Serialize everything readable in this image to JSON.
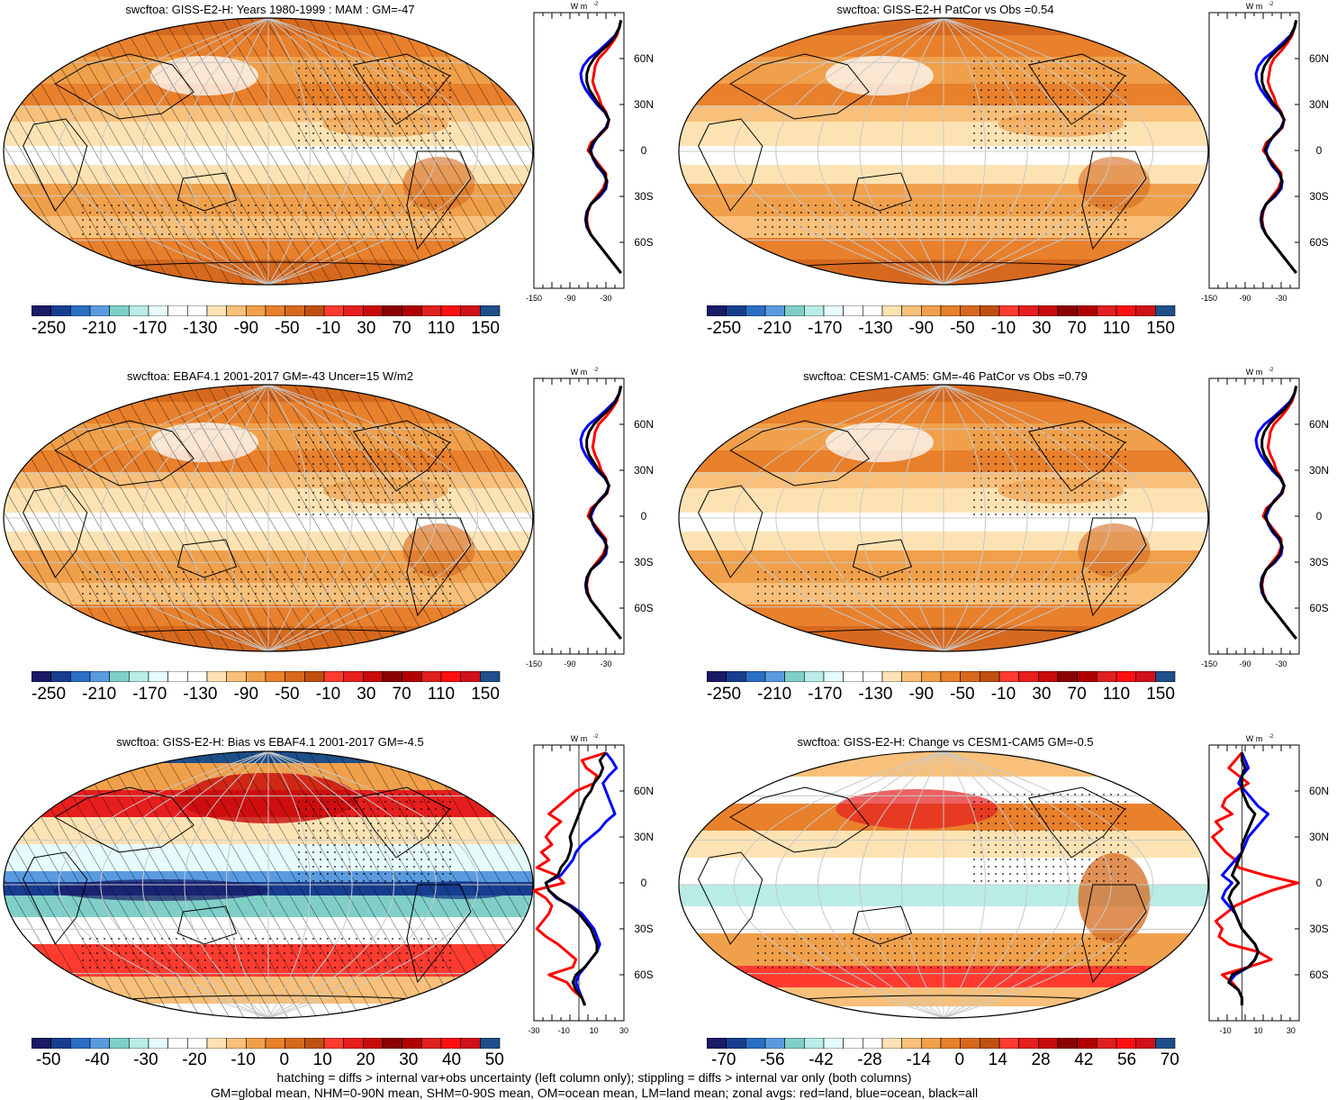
{
  "panels": [
    {
      "title": "swcftoa: GISS-E2-H: Years 1980-1999 : MAM : GM=-47",
      "cbar_labels": [
        "-250",
        "-210",
        "-170",
        "-130",
        "-90",
        "-50",
        "-10",
        "30",
        "70",
        "110",
        "150"
      ],
      "zonal_xticks": [
        "-150",
        "-90",
        "-30"
      ],
      "zonal_unit": "W m",
      "zonal_unit_sup": "-2"
    },
    {
      "title": "swcftoa: GISS-E2-H PatCor vs Obs =0.54",
      "cbar_labels": [
        "-250",
        "-210",
        "-170",
        "-130",
        "-90",
        "-50",
        "-10",
        "30",
        "70",
        "110",
        "150"
      ],
      "zonal_xticks": [
        "-150",
        "-90",
        "-30"
      ],
      "zonal_unit": "W m",
      "zonal_unit_sup": "-2"
    },
    {
      "title": "swcftoa: EBAF4.1 2001-2017 GM=-43 Uncer=15 W/m2",
      "cbar_labels": [
        "-250",
        "-210",
        "-170",
        "-130",
        "-90",
        "-50",
        "-10",
        "30",
        "70",
        "110",
        "150"
      ],
      "zonal_xticks": [
        "-150",
        "-90",
        "-30"
      ],
      "zonal_unit": "W m",
      "zonal_unit_sup": "-2"
    },
    {
      "title": "swcftoa: CESM1-CAM5: GM=-46 PatCor vs Obs =0.79",
      "cbar_labels": [
        "-250",
        "-210",
        "-170",
        "-130",
        "-90",
        "-50",
        "-10",
        "30",
        "70",
        "110",
        "150"
      ],
      "zonal_xticks": [
        "-150",
        "-90",
        "-30"
      ],
      "zonal_unit": "W m",
      "zonal_unit_sup": "-2"
    },
    {
      "title": "swcftoa: GISS-E2-H: Bias vs EBAF4.1 2001-2017 GM=-4.5",
      "cbar_labels": [
        "-50",
        "-40",
        "-30",
        "-20",
        "-10",
        "0",
        "10",
        "20",
        "30",
        "40",
        "50"
      ],
      "zonal_xticks": [
        "-30",
        "-10",
        "10",
        "30"
      ],
      "zonal_unit": "W m",
      "zonal_unit_sup": "-2"
    },
    {
      "title": "swcftoa: GISS-E2-H: Change vs CESM1-CAM5 GM=-0.5",
      "cbar_labels": [
        "-70",
        "-56",
        "-42",
        "-28",
        "-14",
        "0",
        "14",
        "28",
        "42",
        "56",
        "70"
      ],
      "zonal_xticks": [
        "-10",
        "10",
        "30"
      ],
      "zonal_unit": "W m",
      "zonal_unit_sup": "-2"
    }
  ],
  "lat_labels": [
    "60N",
    "30N",
    "0",
    "30S",
    "60S"
  ],
  "caption": {
    "line1": "hatching = diffs > internal var+obs uncertainty (left column only); stippling = diffs > internal var only (both columns)",
    "line2": "GM=global mean, NHM=0-90N mean, SHM=0-90S mean, OM=ocean mean, LM=land mean; zonal avgs: red=land, blue=ocean, black=all"
  },
  "colors": {
    "full_scale": [
      "#1a1a66",
      "#173d8f",
      "#2a6fc4",
      "#5a9be0",
      "#7fcfc8",
      "#b9ece6",
      "#e6fbfb",
      "#ffffff",
      "#ffffff",
      "#fde3b4",
      "#f8c07a",
      "#f0a04b",
      "#e8802c",
      "#d6691e",
      "#c05010",
      "#ff3b30",
      "#e61e1e",
      "#c80a0a",
      "#8b0000",
      "#b00000",
      "#e02020",
      "#ff1010",
      "#d0101a",
      "#1e4f8a"
    ],
    "diff_scale": [
      "#1a1a66",
      "#173d8f",
      "#2a6fc4",
      "#5a9be0",
      "#7fcfc8",
      "#b9ece6",
      "#e6fbfb",
      "#ffffff",
      "#ffffff",
      "#fde3b4",
      "#f8c07a",
      "#f0a04b",
      "#e8802c",
      "#d6691e",
      "#c05010",
      "#ff3b30",
      "#e61e1e",
      "#c80a0a",
      "#8b0000",
      "#b00000",
      "#e02020",
      "#ff1010",
      "#d0101a",
      "#1e4f8a"
    ],
    "land_line": "#ff0000",
    "ocean_line": "#0000ff",
    "all_line": "#000000"
  },
  "zonal_lines": {
    "row_fullfield": {
      "lats": [
        85,
        80,
        75,
        70,
        65,
        60,
        55,
        50,
        45,
        40,
        35,
        30,
        25,
        20,
        15,
        10,
        5,
        0,
        -5,
        -10,
        -15,
        -20,
        -25,
        -30,
        -35,
        -40,
        -45,
        -50,
        -55,
        -60,
        -65,
        -70,
        -75,
        -80
      ],
      "land": [
        -5,
        -8,
        -12,
        -20,
        -30,
        -42,
        -48,
        -50,
        -52,
        -48,
        -42,
        -38,
        -30,
        -25,
        -28,
        -40,
        -55,
        -60,
        -50,
        -40,
        -30,
        -30,
        -35,
        -45,
        -55,
        -60,
        -62,
        -60,
        -55,
        -45,
        -35,
        -25,
        -15,
        -5
      ],
      "ocean": [
        -5,
        -8,
        -15,
        -28,
        -42,
        -58,
        -68,
        -72,
        -70,
        -64,
        -55,
        -45,
        -32,
        -25,
        -30,
        -42,
        -50,
        -55,
        -52,
        -45,
        -34,
        -28,
        -30,
        -40,
        -55,
        -62,
        -64,
        -62,
        -55,
        -45,
        -35,
        -25,
        -15,
        -5
      ],
      "all": [
        -5,
        -8,
        -14,
        -24,
        -38,
        -50,
        -58,
        -62,
        -62,
        -58,
        -50,
        -42,
        -31,
        -25,
        -29,
        -41,
        -52,
        -57,
        -51,
        -43,
        -32,
        -29,
        -32,
        -42,
        -55,
        -61,
        -63,
        -61,
        -55,
        -45,
        -35,
        -25,
        -15,
        -5
      ]
    },
    "row_bias": {
      "lats": [
        85,
        80,
        75,
        70,
        65,
        60,
        55,
        50,
        45,
        40,
        35,
        30,
        25,
        20,
        15,
        10,
        5,
        0,
        -5,
        -10,
        -15,
        -20,
        -25,
        -30,
        -35,
        -40,
        -45,
        -50,
        -55,
        -60,
        -65,
        -70,
        -75,
        -80
      ],
      "land": [
        18,
        2,
        5,
        12,
        10,
        -2,
        -8,
        -14,
        -20,
        -12,
        -18,
        -22,
        -18,
        -25,
        -20,
        -28,
        -15,
        -10,
        -30,
        -22,
        -18,
        -20,
        -24,
        -28,
        -22,
        -14,
        -8,
        -2,
        -4,
        -20,
        -8,
        -4,
        2,
        4
      ],
      "ocean": [
        18,
        22,
        25,
        20,
        16,
        18,
        20,
        22,
        24,
        18,
        14,
        8,
        2,
        -2,
        -4,
        -8,
        -12,
        -22,
        -20,
        -15,
        -5,
        2,
        6,
        10,
        12,
        14,
        12,
        8,
        4,
        0,
        -2,
        0,
        2,
        4
      ],
      "all": [
        18,
        14,
        16,
        14,
        10,
        8,
        4,
        2,
        0,
        -2,
        -4,
        -6,
        -5,
        -6,
        -8,
        -12,
        -14,
        -22,
        -20,
        -14,
        -6,
        0,
        4,
        8,
        10,
        12,
        12,
        8,
        4,
        -2,
        -4,
        -2,
        2,
        4
      ]
    },
    "row_change": {
      "lats": [
        85,
        80,
        75,
        70,
        65,
        60,
        55,
        50,
        45,
        40,
        35,
        30,
        25,
        20,
        15,
        10,
        5,
        0,
        -5,
        -10,
        -15,
        -20,
        -25,
        -30,
        -35,
        -40,
        -45,
        -50,
        -55,
        -60,
        -65,
        -70,
        -75,
        -80
      ],
      "land": [
        0,
        -4,
        -8,
        -2,
        4,
        -4,
        -10,
        -12,
        -6,
        -16,
        -12,
        -18,
        -14,
        -10,
        -4,
        -2,
        14,
        34,
        18,
        6,
        -4,
        -10,
        -16,
        -12,
        -14,
        -8,
        10,
        18,
        4,
        -12,
        -6,
        -2,
        0,
        0
      ],
      "ocean": [
        0,
        2,
        4,
        0,
        -2,
        2,
        6,
        10,
        16,
        12,
        8,
        4,
        2,
        0,
        -4,
        -8,
        -12,
        -6,
        -10,
        -12,
        -8,
        -4,
        -2,
        0,
        4,
        8,
        10,
        8,
        4,
        -4,
        -8,
        -2,
        0,
        0
      ],
      "all": [
        0,
        0,
        2,
        0,
        0,
        0,
        2,
        4,
        8,
        6,
        4,
        2,
        0,
        0,
        -2,
        -4,
        -6,
        -2,
        -6,
        -8,
        -6,
        -4,
        -2,
        0,
        4,
        8,
        10,
        8,
        4,
        -6,
        -8,
        -2,
        0,
        0
      ]
    }
  }
}
